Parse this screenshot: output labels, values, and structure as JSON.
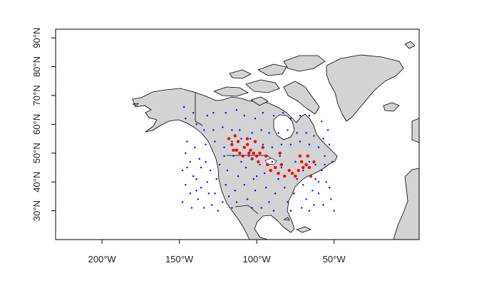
{
  "chart_data": {
    "type": "scatter",
    "title": "",
    "xlabel": "",
    "ylabel": "",
    "xlim": [
      -230,
      5
    ],
    "ylim": [
      20,
      93
    ],
    "x_ticks": [
      {
        "value": -200,
        "label": "200°W"
      },
      {
        "value": -150,
        "label": "150°W"
      },
      {
        "value": -100,
        "label": "100°W"
      },
      {
        "value": -50,
        "label": "50°W"
      }
    ],
    "y_ticks": [
      {
        "value": 30,
        "label": "30°N"
      },
      {
        "value": 40,
        "label": "40°N"
      },
      {
        "value": 50,
        "label": "50°N"
      },
      {
        "value": 60,
        "label": "60°N"
      },
      {
        "value": 70,
        "label": "70°N"
      },
      {
        "value": 80,
        "label": "80°N"
      },
      {
        "value": 90,
        "label": "90°N"
      }
    ],
    "colors": {
      "land": "#d3d3d3",
      "outline": "#000000",
      "blue_points": "#0000ff",
      "red_points": "#ff0000"
    },
    "series": [
      {
        "color": "blue",
        "points": [
          [
            -147,
            66
          ],
          [
            -146,
            62
          ],
          [
            -141,
            64
          ],
          [
            -132,
            63
          ],
          [
            -128,
            64
          ],
          [
            -120,
            64
          ],
          [
            -113,
            65
          ],
          [
            -108,
            63
          ],
          [
            -101,
            62
          ],
          [
            -96,
            64
          ],
          [
            -89,
            63
          ],
          [
            -83,
            64
          ],
          [
            -78,
            62
          ],
          [
            -72,
            63
          ],
          [
            -66,
            63
          ],
          [
            -58,
            61
          ],
          [
            -54,
            58
          ],
          [
            -53,
            53
          ],
          [
            -139,
            60
          ],
          [
            -134,
            58
          ],
          [
            -128,
            58
          ],
          [
            -122,
            59
          ],
          [
            -116,
            58
          ],
          [
            -111,
            58
          ],
          [
            -103,
            57
          ],
          [
            -97,
            58
          ],
          [
            -92,
            57
          ],
          [
            -86,
            57
          ],
          [
            -80,
            58
          ],
          [
            -74,
            57
          ],
          [
            -68,
            57
          ],
          [
            -63,
            56
          ],
          [
            -57,
            55
          ],
          [
            -133,
            53
          ],
          [
            -127,
            54
          ],
          [
            -121,
            52
          ],
          [
            -116,
            54
          ],
          [
            -110,
            55
          ],
          [
            -104,
            55
          ],
          [
            -96,
            53
          ],
          [
            -90,
            52
          ],
          [
            -84,
            53
          ],
          [
            -78,
            53
          ],
          [
            -72,
            54
          ],
          [
            -66,
            53
          ],
          [
            -60,
            52
          ],
          [
            -56,
            49
          ],
          [
            -145,
            54
          ],
          [
            -140,
            52
          ],
          [
            -146,
            50
          ],
          [
            -143,
            47
          ],
          [
            -148,
            44
          ],
          [
            -141,
            42
          ],
          [
            -146,
            39
          ],
          [
            -143,
            36
          ],
          [
            -148,
            33
          ],
          [
            -142,
            31
          ],
          [
            -138,
            34
          ],
          [
            -136,
            38
          ],
          [
            -139,
            41
          ],
          [
            -136,
            45
          ],
          [
            -137,
            48
          ],
          [
            -133,
            47
          ],
          [
            -130,
            44
          ],
          [
            -132,
            40
          ],
          [
            -131,
            36
          ],
          [
            -129,
            32
          ],
          [
            -125,
            30
          ],
          [
            -127,
            36
          ],
          [
            -126,
            41
          ],
          [
            -124,
            46
          ],
          [
            -121,
            49
          ],
          [
            -119,
            44
          ],
          [
            -120,
            39
          ],
          [
            -118,
            35
          ],
          [
            -116,
            31
          ],
          [
            -114,
            37
          ],
          [
            -112,
            42
          ],
          [
            -110,
            47
          ],
          [
            -107,
            45
          ],
          [
            -108,
            39
          ],
          [
            -106,
            34
          ],
          [
            -103,
            31
          ],
          [
            -101,
            37
          ],
          [
            -100,
            42
          ],
          [
            -98,
            46
          ],
          [
            -95,
            43
          ],
          [
            -94,
            38
          ],
          [
            -92,
            33
          ],
          [
            -89,
            30
          ],
          [
            -88,
            36
          ],
          [
            -86,
            41
          ],
          [
            -84,
            45
          ],
          [
            -82,
            38
          ],
          [
            -80,
            33
          ],
          [
            -78,
            30
          ],
          [
            -76,
            36
          ],
          [
            -74,
            41
          ],
          [
            -70,
            39
          ],
          [
            -68,
            34
          ],
          [
            -66,
            30
          ],
          [
            -64,
            37
          ],
          [
            -62,
            41
          ],
          [
            -60,
            36
          ],
          [
            -57,
            32
          ],
          [
            -55,
            40
          ],
          [
            -52,
            34
          ],
          [
            -50,
            30
          ],
          [
            -53,
            38
          ],
          [
            -58,
            44
          ],
          [
            -62,
            46
          ],
          [
            -66,
            47
          ],
          [
            -70,
            44
          ],
          [
            -75,
            47
          ],
          [
            -105,
            49
          ],
          [
            -115,
            49
          ],
          [
            -102,
            41
          ],
          [
            -90,
            47
          ],
          [
            -85,
            49
          ],
          [
            -63,
            32
          ],
          [
            -71,
            31
          ],
          [
            -97,
            31
          ],
          [
            -113,
            33
          ],
          [
            -122,
            33
          ],
          [
            -134,
            31
          ],
          [
            -145,
            45
          ],
          [
            -139,
            37
          ],
          [
            -60,
            40
          ],
          [
            -56,
            46
          ],
          [
            -51,
            47
          ]
        ]
      },
      {
        "color": "red",
        "points": [
          [
            -118,
            55
          ],
          [
            -116,
            53
          ],
          [
            -114,
            56
          ],
          [
            -112,
            54
          ],
          [
            -115,
            51
          ],
          [
            -111,
            50
          ],
          [
            -108,
            52
          ],
          [
            -106,
            53
          ],
          [
            -104,
            51
          ],
          [
            -102,
            50
          ],
          [
            -103,
            48
          ],
          [
            -100,
            49
          ],
          [
            -98,
            50
          ],
          [
            -106,
            55
          ],
          [
            -101,
            54
          ],
          [
            -96,
            52
          ],
          [
            -99,
            47
          ],
          [
            -93,
            46
          ],
          [
            -91,
            44
          ],
          [
            -88,
            45
          ],
          [
            -86,
            43
          ],
          [
            -84,
            46
          ],
          [
            -82,
            42
          ],
          [
            -79,
            44
          ],
          [
            -77,
            43
          ],
          [
            -75,
            42
          ],
          [
            -73,
            44
          ],
          [
            -71,
            47
          ],
          [
            -70,
            45
          ],
          [
            -68,
            46
          ],
          [
            -66,
            45
          ],
          [
            -65,
            42
          ],
          [
            -63,
            47
          ],
          [
            -67,
            49
          ],
          [
            -72,
            49
          ],
          [
            -85,
            50
          ],
          [
            -94,
            49
          ],
          [
            -109,
            49
          ],
          [
            -113,
            51
          ],
          [
            -105,
            50
          ]
        ]
      }
    ]
  }
}
